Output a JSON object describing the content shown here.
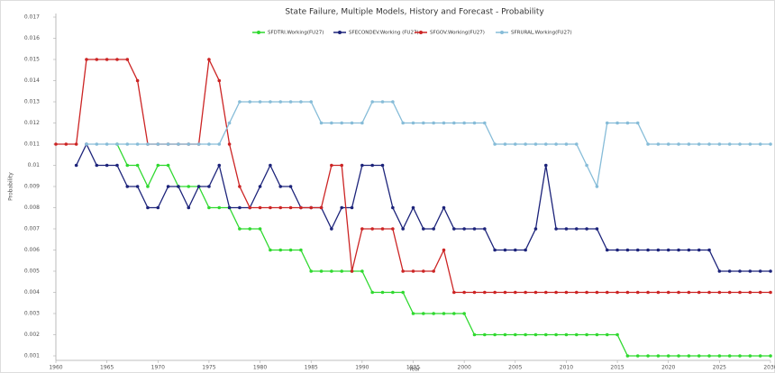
{
  "chart_data": {
    "type": "line",
    "title": "State Failure, Multiple Models, History and Forecast - Probability",
    "xlabel": "Year",
    "ylabel": "Probability",
    "x": [
      1960,
      1961,
      1962,
      1963,
      1964,
      1965,
      1966,
      1967,
      1968,
      1969,
      1970,
      1971,
      1972,
      1973,
      1974,
      1975,
      1976,
      1977,
      1978,
      1979,
      1980,
      1981,
      1982,
      1983,
      1984,
      1985,
      1986,
      1987,
      1988,
      1989,
      1990,
      1991,
      1992,
      1993,
      1994,
      1995,
      1996,
      1997,
      1998,
      1999,
      2000,
      2001,
      2002,
      2003,
      2004,
      2005,
      2006,
      2007,
      2008,
      2009,
      2010,
      2011,
      2012,
      2013,
      2014,
      2015,
      2016,
      2017,
      2018,
      2019,
      2020,
      2021,
      2022,
      2023,
      2024,
      2025,
      2026,
      2027,
      2028,
      2029,
      2030
    ],
    "xlim": [
      1960,
      2030
    ],
    "xticks": [
      1960,
      1965,
      1970,
      1975,
      1980,
      1985,
      1990,
      1995,
      2000,
      2005,
      2010,
      2015,
      2020,
      2025,
      2030
    ],
    "ylim": [
      0.001,
      0.017
    ],
    "yticks": [
      0.001,
      0.002,
      0.003,
      0.004,
      0.005,
      0.006,
      0.007,
      0.008,
      0.009,
      0.01,
      0.011,
      0.012,
      0.013,
      0.014,
      0.015,
      0.016,
      0.017
    ],
    "grid": false,
    "legend": "top",
    "series": [
      {
        "name": "SFDTRI.Working(FU27)",
        "color": "#2fd92f",
        "values": [
          null,
          null,
          null,
          null,
          null,
          null,
          0.011,
          0.01,
          0.01,
          0.009,
          0.01,
          0.01,
          0.009,
          0.009,
          0.009,
          0.008,
          0.008,
          0.008,
          0.007,
          0.007,
          0.007,
          0.006,
          0.006,
          0.006,
          0.006,
          0.005,
          0.005,
          0.005,
          0.005,
          0.005,
          0.005,
          0.004,
          0.004,
          0.004,
          0.004,
          0.003,
          0.003,
          0.003,
          0.003,
          0.003,
          0.003,
          0.002,
          0.002,
          0.002,
          0.002,
          0.002,
          0.002,
          0.002,
          0.002,
          0.002,
          0.002,
          0.002,
          0.002,
          0.002,
          0.002,
          0.002,
          0.001,
          0.001,
          0.001,
          0.001,
          0.001,
          0.001,
          0.001,
          0.001,
          0.001,
          0.001,
          0.001,
          0.001,
          0.001,
          0.001,
          0.001
        ]
      },
      {
        "name": "SFECONDEV.Working (FU27)",
        "color": "#1c237a",
        "values": [
          null,
          null,
          0.01,
          0.011,
          0.01,
          0.01,
          0.01,
          0.009,
          0.009,
          0.008,
          0.008,
          0.009,
          0.009,
          0.008,
          0.009,
          0.009,
          0.01,
          0.008,
          0.008,
          0.008,
          0.009,
          0.01,
          0.009,
          0.009,
          0.008,
          0.008,
          0.008,
          0.007,
          0.008,
          0.008,
          0.01,
          0.01,
          0.01,
          0.008,
          0.007,
          0.008,
          0.007,
          0.007,
          0.008,
          0.007,
          0.007,
          0.007,
          0.007,
          0.006,
          0.006,
          0.006,
          0.006,
          0.007,
          0.01,
          0.007,
          0.007,
          0.007,
          0.007,
          0.007,
          0.006,
          0.006,
          0.006,
          0.006,
          0.006,
          0.006,
          0.006,
          0.006,
          0.006,
          0.006,
          0.006,
          0.005,
          0.005,
          0.005,
          0.005,
          0.005,
          0.005
        ]
      },
      {
        "name": "SFGOV.Working(FU27)",
        "color": "#cc2424",
        "values": [
          0.011,
          0.011,
          0.011,
          0.015,
          0.015,
          0.015,
          0.015,
          0.015,
          0.014,
          0.011,
          0.011,
          0.011,
          0.011,
          0.011,
          0.011,
          0.015,
          0.014,
          0.011,
          0.009,
          0.008,
          0.008,
          0.008,
          0.008,
          0.008,
          0.008,
          0.008,
          0.008,
          0.01,
          0.01,
          0.005,
          0.007,
          0.007,
          0.007,
          0.007,
          0.005,
          0.005,
          0.005,
          0.005,
          0.006,
          0.004,
          0.004,
          0.004,
          0.004,
          0.004,
          0.004,
          0.004,
          0.004,
          0.004,
          0.004,
          0.004,
          0.004,
          0.004,
          0.004,
          0.004,
          0.004,
          0.004,
          0.004,
          0.004,
          0.004,
          0.004,
          0.004,
          0.004,
          0.004,
          0.004,
          0.004,
          0.004,
          0.004,
          0.004,
          0.004,
          0.004,
          0.004
        ]
      },
      {
        "name": "SFRURAL.Working(FU27)",
        "color": "#86bcd8",
        "values": [
          null,
          null,
          null,
          0.011,
          0.011,
          0.011,
          0.011,
          0.011,
          0.011,
          0.011,
          0.011,
          0.011,
          0.011,
          0.011,
          0.011,
          0.011,
          0.011,
          0.012,
          0.013,
          0.013,
          0.013,
          0.013,
          0.013,
          0.013,
          0.013,
          0.013,
          0.012,
          0.012,
          0.012,
          0.012,
          0.012,
          0.013,
          0.013,
          0.013,
          0.012,
          0.012,
          0.012,
          0.012,
          0.012,
          0.012,
          0.012,
          0.012,
          0.012,
          0.011,
          0.011,
          0.011,
          0.011,
          0.011,
          0.011,
          0.011,
          0.011,
          0.011,
          0.01,
          0.009,
          0.012,
          0.012,
          0.012,
          0.012,
          0.011,
          0.011,
          0.011,
          0.011,
          0.011,
          0.011,
          0.011,
          0.011,
          0.011,
          0.011,
          0.011,
          0.011,
          0.011
        ]
      }
    ]
  }
}
